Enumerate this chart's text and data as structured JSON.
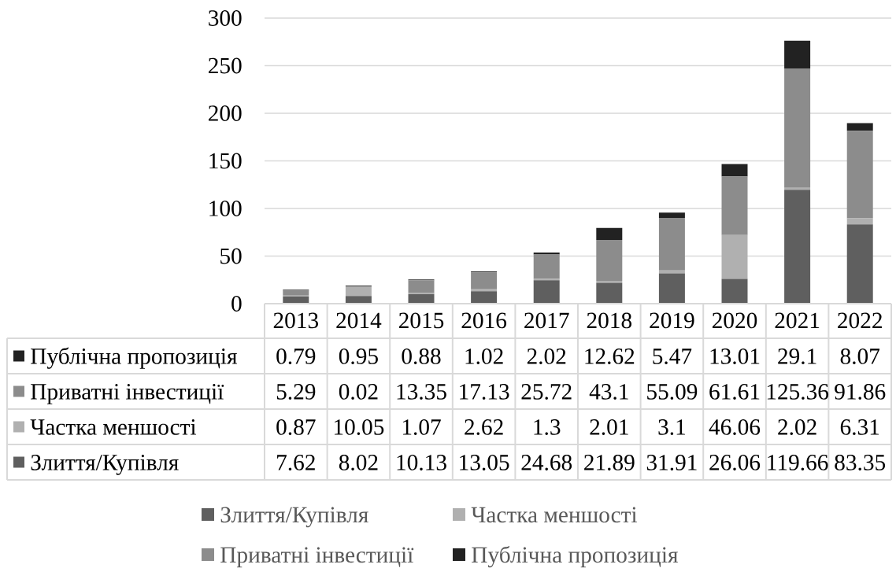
{
  "chart_data": {
    "type": "bar",
    "stacked": true,
    "categories": [
      "2013",
      "2014",
      "2015",
      "2016",
      "2017",
      "2018",
      "2019",
      "2020",
      "2021",
      "2022"
    ],
    "series": [
      {
        "name": "Злиття/Купівля",
        "color": "#5f5f5f",
        "values": [
          7.62,
          8.02,
          10.13,
          13.05,
          24.68,
          21.89,
          31.91,
          26.06,
          119.66,
          83.35
        ]
      },
      {
        "name": "Частка меншості",
        "color": "#b0b0b0",
        "values": [
          0.87,
          10.05,
          1.07,
          2.62,
          1.3,
          2.01,
          3.1,
          46.06,
          2.02,
          6.31
        ]
      },
      {
        "name": "Приватні інвестиції",
        "color": "#8c8c8c",
        "values": [
          5.29,
          0.02,
          13.35,
          17.13,
          25.72,
          43.1,
          55.09,
          61.61,
          125.36,
          91.86
        ]
      },
      {
        "name": "Публічна пропозиція",
        "color": "#222222",
        "values": [
          0.79,
          0.95,
          0.88,
          1.02,
          2.02,
          12.62,
          5.47,
          13.01,
          29.1,
          8.07
        ]
      }
    ],
    "ylim": [
      0,
      300
    ],
    "yticks": [
      0,
      50,
      100,
      150,
      200,
      250,
      300
    ],
    "grid": "y",
    "legend": "bottom",
    "data_labels": true
  }
}
